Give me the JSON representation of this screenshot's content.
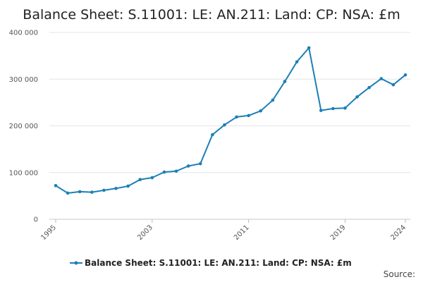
{
  "chart_data": {
    "type": "line",
    "title": "Balance Sheet: S.11001: LE: AN.211: Land: CP: NSA: £m",
    "xlabel": "",
    "ylabel": "",
    "x": [
      1995,
      1996,
      1997,
      1998,
      1999,
      2000,
      2001,
      2002,
      2003,
      2004,
      2005,
      2006,
      2007,
      2008,
      2009,
      2010,
      2011,
      2012,
      2013,
      2014,
      2015,
      2016,
      2017,
      2018,
      2019,
      2020,
      2021,
      2022,
      2023,
      2024
    ],
    "series": [
      {
        "name": "Balance Sheet: S.11001: LE: AN.211: Land: CP: NSA: £m",
        "color": "#1c7fb6",
        "values": [
          72000,
          56000,
          59000,
          58000,
          62000,
          66000,
          71000,
          85000,
          89000,
          101000,
          103000,
          114000,
          119000,
          181000,
          202000,
          219000,
          222000,
          232000,
          255000,
          295000,
          337000,
          367000,
          233000,
          237000,
          238000,
          262000,
          282000,
          301000,
          288000,
          309000
        ]
      }
    ],
    "ylim": [
      0,
      400000
    ],
    "yticks": [
      0,
      100000,
      200000,
      300000,
      400000
    ],
    "ytick_labels": [
      "0",
      "100 000",
      "200 000",
      "300 000",
      "400 000"
    ],
    "xticks": [
      1995,
      2003,
      2011,
      2019,
      2024
    ],
    "xtick_labels": [
      "1995",
      "2003",
      "2011",
      "2019",
      "2024"
    ],
    "legend": "bottom-center",
    "grid": true,
    "source_label": "Source:"
  }
}
